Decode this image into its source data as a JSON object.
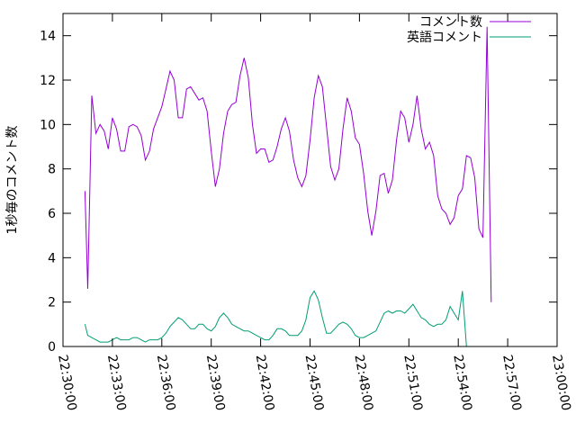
{
  "chart_data": {
    "type": "line",
    "title": "",
    "xlabel": "",
    "ylabel": "1秒毎のコメント数",
    "xlim": [
      "22:30:00",
      "23:00:00"
    ],
    "ylim": [
      0,
      15
    ],
    "x_ticks": [
      "22:30:00",
      "22:33:00",
      "22:36:00",
      "22:39:00",
      "22:42:00",
      "22:45:00",
      "22:48:00",
      "22:51:00",
      "22:54:00",
      "22:57:00",
      "23:00:00"
    ],
    "y_ticks": [
      0,
      2,
      4,
      6,
      8,
      10,
      12,
      14
    ],
    "grid": false,
    "legend_position": "top-right",
    "series": [
      {
        "name": "コメント数",
        "color": "#9400d3",
        "points": [
          [
            "22:31:20",
            7.0
          ],
          [
            "22:31:30",
            2.6
          ],
          [
            "22:31:45",
            11.3
          ],
          [
            "22:32:00",
            9.6
          ],
          [
            "22:32:15",
            10.0
          ],
          [
            "22:32:30",
            9.7
          ],
          [
            "22:32:45",
            8.9
          ],
          [
            "22:33:00",
            10.3
          ],
          [
            "22:33:15",
            9.8
          ],
          [
            "22:33:30",
            8.8
          ],
          [
            "22:33:45",
            8.8
          ],
          [
            "22:34:00",
            9.9
          ],
          [
            "22:34:15",
            10.0
          ],
          [
            "22:34:30",
            9.9
          ],
          [
            "22:34:45",
            9.5
          ],
          [
            "22:35:00",
            8.4
          ],
          [
            "22:35:15",
            8.8
          ],
          [
            "22:35:30",
            9.8
          ],
          [
            "22:35:45",
            10.3
          ],
          [
            "22:36:00",
            10.8
          ],
          [
            "22:36:15",
            11.6
          ],
          [
            "22:36:30",
            12.4
          ],
          [
            "22:36:45",
            12.0
          ],
          [
            "22:37:00",
            10.3
          ],
          [
            "22:37:15",
            10.3
          ],
          [
            "22:37:30",
            11.6
          ],
          [
            "22:37:45",
            11.7
          ],
          [
            "22:38:00",
            11.4
          ],
          [
            "22:38:15",
            11.1
          ],
          [
            "22:38:30",
            11.2
          ],
          [
            "22:38:45",
            10.6
          ],
          [
            "22:39:00",
            8.8
          ],
          [
            "22:39:15",
            7.2
          ],
          [
            "22:39:30",
            8.0
          ],
          [
            "22:39:45",
            9.6
          ],
          [
            "22:40:00",
            10.6
          ],
          [
            "22:40:15",
            10.9
          ],
          [
            "22:40:30",
            11.0
          ],
          [
            "22:40:45",
            12.2
          ],
          [
            "22:41:00",
            13.0
          ],
          [
            "22:41:15",
            12.1
          ],
          [
            "22:41:30",
            10.0
          ],
          [
            "22:41:45",
            8.7
          ],
          [
            "22:42:00",
            8.9
          ],
          [
            "22:42:15",
            8.9
          ],
          [
            "22:42:30",
            8.3
          ],
          [
            "22:42:45",
            8.4
          ],
          [
            "22:43:00",
            9.0
          ],
          [
            "22:43:15",
            9.8
          ],
          [
            "22:43:30",
            10.3
          ],
          [
            "22:43:45",
            9.7
          ],
          [
            "22:44:00",
            8.4
          ],
          [
            "22:44:15",
            7.6
          ],
          [
            "22:44:30",
            7.2
          ],
          [
            "22:44:45",
            7.7
          ],
          [
            "22:45:00",
            9.3
          ],
          [
            "22:45:15",
            11.2
          ],
          [
            "22:45:30",
            12.2
          ],
          [
            "22:45:45",
            11.7
          ],
          [
            "22:46:00",
            9.9
          ],
          [
            "22:46:15",
            8.1
          ],
          [
            "22:46:30",
            7.5
          ],
          [
            "22:46:45",
            8.0
          ],
          [
            "22:47:00",
            9.8
          ],
          [
            "22:47:15",
            11.2
          ],
          [
            "22:47:30",
            10.6
          ],
          [
            "22:47:45",
            9.4
          ],
          [
            "22:48:00",
            9.1
          ],
          [
            "22:48:15",
            7.8
          ],
          [
            "22:48:30",
            6.1
          ],
          [
            "22:48:45",
            5.0
          ],
          [
            "22:49:00",
            6.1
          ],
          [
            "22:49:15",
            7.7
          ],
          [
            "22:49:30",
            7.8
          ],
          [
            "22:49:45",
            6.9
          ],
          [
            "22:50:00",
            7.5
          ],
          [
            "22:50:15",
            9.3
          ],
          [
            "22:50:30",
            10.6
          ],
          [
            "22:50:45",
            10.3
          ],
          [
            "22:51:00",
            9.2
          ],
          [
            "22:51:15",
            10.0
          ],
          [
            "22:51:30",
            11.3
          ],
          [
            "22:51:45",
            9.8
          ],
          [
            "22:52:00",
            8.9
          ],
          [
            "22:52:15",
            9.2
          ],
          [
            "22:52:30",
            8.6
          ],
          [
            "22:52:45",
            6.8
          ],
          [
            "22:53:00",
            6.2
          ],
          [
            "22:53:15",
            6.0
          ],
          [
            "22:53:30",
            5.5
          ],
          [
            "22:53:45",
            5.8
          ],
          [
            "22:54:00",
            6.8
          ],
          [
            "22:54:15",
            7.1
          ],
          [
            "22:54:30",
            8.6
          ],
          [
            "22:54:45",
            8.5
          ],
          [
            "22:55:00",
            7.6
          ],
          [
            "22:55:15",
            5.3
          ],
          [
            "22:55:30",
            4.9
          ],
          [
            "22:55:45",
            14.4
          ],
          [
            "22:56:00",
            2.0
          ]
        ]
      },
      {
        "name": "英語コメント",
        "color": "#009e73",
        "points": [
          [
            "22:31:20",
            1.0
          ],
          [
            "22:31:30",
            0.5
          ],
          [
            "22:31:45",
            0.4
          ],
          [
            "22:32:00",
            0.3
          ],
          [
            "22:32:15",
            0.2
          ],
          [
            "22:32:30",
            0.2
          ],
          [
            "22:32:45",
            0.2
          ],
          [
            "22:33:00",
            0.3
          ],
          [
            "22:33:15",
            0.4
          ],
          [
            "22:33:30",
            0.3
          ],
          [
            "22:33:45",
            0.3
          ],
          [
            "22:34:00",
            0.3
          ],
          [
            "22:34:15",
            0.4
          ],
          [
            "22:34:30",
            0.4
          ],
          [
            "22:34:45",
            0.3
          ],
          [
            "22:35:00",
            0.2
          ],
          [
            "22:35:15",
            0.3
          ],
          [
            "22:35:30",
            0.3
          ],
          [
            "22:35:45",
            0.3
          ],
          [
            "22:36:00",
            0.4
          ],
          [
            "22:36:15",
            0.6
          ],
          [
            "22:36:30",
            0.9
          ],
          [
            "22:36:45",
            1.1
          ],
          [
            "22:37:00",
            1.3
          ],
          [
            "22:37:15",
            1.2
          ],
          [
            "22:37:30",
            1.0
          ],
          [
            "22:37:45",
            0.8
          ],
          [
            "22:38:00",
            0.8
          ],
          [
            "22:38:15",
            1.0
          ],
          [
            "22:38:30",
            1.0
          ],
          [
            "22:38:45",
            0.8
          ],
          [
            "22:39:00",
            0.7
          ],
          [
            "22:39:15",
            0.9
          ],
          [
            "22:39:30",
            1.3
          ],
          [
            "22:39:45",
            1.5
          ],
          [
            "22:40:00",
            1.3
          ],
          [
            "22:40:15",
            1.0
          ],
          [
            "22:40:30",
            0.9
          ],
          [
            "22:40:45",
            0.8
          ],
          [
            "22:41:00",
            0.7
          ],
          [
            "22:41:15",
            0.7
          ],
          [
            "22:41:30",
            0.6
          ],
          [
            "22:41:45",
            0.5
          ],
          [
            "22:42:00",
            0.4
          ],
          [
            "22:42:15",
            0.3
          ],
          [
            "22:42:30",
            0.3
          ],
          [
            "22:42:45",
            0.5
          ],
          [
            "22:43:00",
            0.8
          ],
          [
            "22:43:15",
            0.8
          ],
          [
            "22:43:30",
            0.7
          ],
          [
            "22:43:45",
            0.5
          ],
          [
            "22:44:00",
            0.5
          ],
          [
            "22:44:15",
            0.5
          ],
          [
            "22:44:30",
            0.7
          ],
          [
            "22:44:45",
            1.2
          ],
          [
            "22:45:00",
            2.2
          ],
          [
            "22:45:15",
            2.5
          ],
          [
            "22:45:30",
            2.1
          ],
          [
            "22:45:45",
            1.3
          ],
          [
            "22:46:00",
            0.6
          ],
          [
            "22:46:15",
            0.6
          ],
          [
            "22:46:30",
            0.8
          ],
          [
            "22:46:45",
            1.0
          ],
          [
            "22:47:00",
            1.1
          ],
          [
            "22:47:15",
            1.0
          ],
          [
            "22:47:30",
            0.8
          ],
          [
            "22:47:45",
            0.5
          ],
          [
            "22:48:00",
            0.4
          ],
          [
            "22:48:15",
            0.4
          ],
          [
            "22:48:30",
            0.5
          ],
          [
            "22:48:45",
            0.6
          ],
          [
            "22:49:00",
            0.7
          ],
          [
            "22:49:15",
            1.1
          ],
          [
            "22:49:30",
            1.5
          ],
          [
            "22:49:45",
            1.6
          ],
          [
            "22:50:00",
            1.5
          ],
          [
            "22:50:15",
            1.6
          ],
          [
            "22:50:30",
            1.6
          ],
          [
            "22:50:45",
            1.5
          ],
          [
            "22:51:00",
            1.7
          ],
          [
            "22:51:15",
            1.9
          ],
          [
            "22:51:30",
            1.6
          ],
          [
            "22:51:45",
            1.3
          ],
          [
            "22:52:00",
            1.2
          ],
          [
            "22:52:15",
            1.0
          ],
          [
            "22:52:30",
            0.9
          ],
          [
            "22:52:45",
            1.0
          ],
          [
            "22:53:00",
            1.0
          ],
          [
            "22:53:15",
            1.2
          ],
          [
            "22:53:30",
            1.8
          ],
          [
            "22:53:45",
            1.5
          ],
          [
            "22:54:00",
            1.2
          ],
          [
            "22:54:15",
            2.5
          ],
          [
            "22:54:30",
            0.0
          ]
        ]
      }
    ]
  }
}
